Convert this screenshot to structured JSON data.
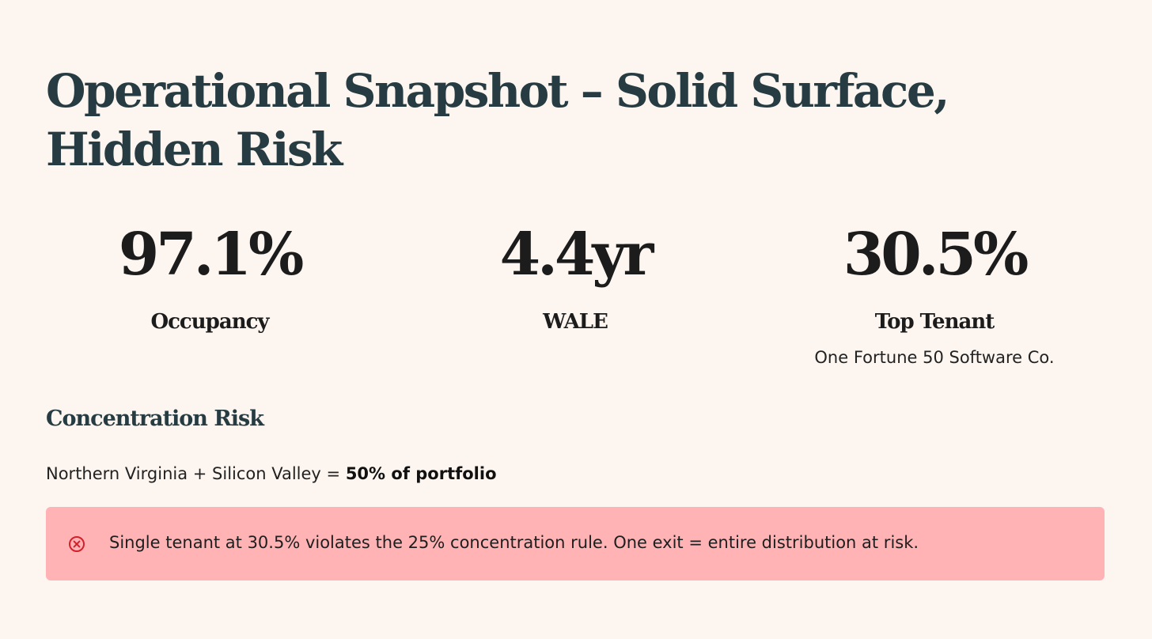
{
  "header": {
    "title": "Operational Snapshot – Solid Surface, Hidden Risk"
  },
  "metrics": [
    {
      "value": "97.1%",
      "label": "Occupancy",
      "sub": ""
    },
    {
      "value": "4.4yr",
      "label": "WALE",
      "sub": ""
    },
    {
      "value": "30.5%",
      "label": "Top Tenant",
      "sub": "One Fortune 50 Software Co."
    }
  ],
  "concentration": {
    "heading": "Concentration Risk",
    "text_prefix": "Northern Virginia + Silicon Valley = ",
    "text_bold": "50% of portfolio"
  },
  "alert": {
    "icon": "x-circle-icon",
    "text": "Single tenant at 30.5% violates the 25% concentration rule. One exit = entire distribution at risk.",
    "background_color": "#ffb3b5",
    "icon_color": "#d3202a"
  },
  "colors": {
    "background": "#fdf6f0",
    "heading": "#263c42",
    "metric_text": "#1c1c1c"
  }
}
